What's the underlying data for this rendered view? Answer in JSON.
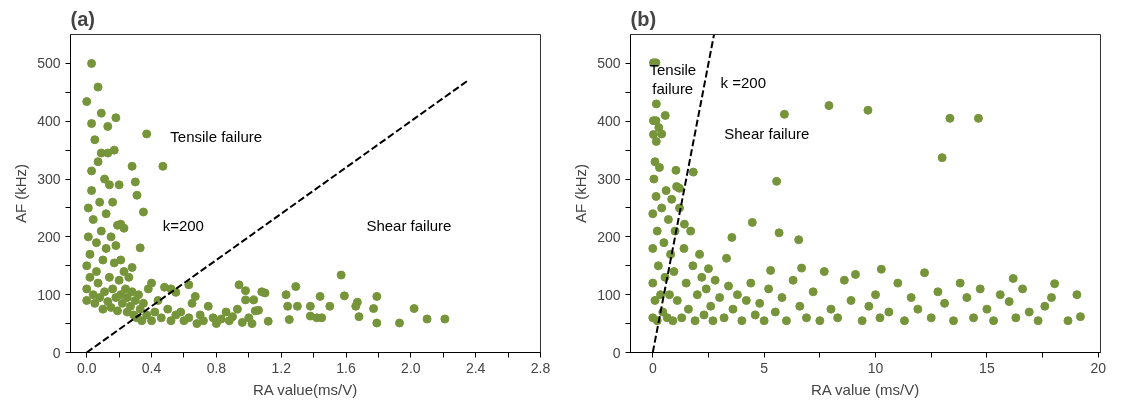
{
  "chart_data": [
    {
      "type": "scatter",
      "title": "(a)",
      "xlabel": "RA value(ms/V)",
      "ylabel": "AF (kHz)",
      "marker": "circle",
      "grid": false,
      "xlim": [
        -0.1,
        2.8
      ],
      "ylim": [
        0,
        550
      ],
      "xticks": [
        {
          "value": 0,
          "label": "0.0"
        },
        {
          "value": 0.2,
          "label": null
        },
        {
          "value": 0.4,
          "label": "0.4"
        },
        {
          "value": 0.6,
          "label": null
        },
        {
          "value": 0.8,
          "label": "0.8"
        },
        {
          "value": 1.0,
          "label": null
        },
        {
          "value": 1.2,
          "label": "1.2"
        },
        {
          "value": 1.4,
          "label": null
        },
        {
          "value": 1.6,
          "label": "1.6"
        },
        {
          "value": 1.8,
          "label": null
        },
        {
          "value": 2.0,
          "label": "2.0"
        },
        {
          "value": 2.2,
          "label": null
        },
        {
          "value": 2.4,
          "label": "2.4"
        },
        {
          "value": 2.6,
          "label": null
        },
        {
          "value": 2.8,
          "label": "2.8"
        }
      ],
      "yticks": [
        0,
        {
          "value": 50,
          "label": null
        },
        100,
        {
          "value": 150,
          "label": null
        },
        200,
        {
          "value": 250,
          "label": null
        },
        300,
        {
          "value": 350,
          "label": null
        },
        400,
        {
          "value": 450,
          "label": null
        },
        500
      ],
      "annotations": [
        "Tensile failure",
        "k=200",
        "Shear failure"
      ],
      "series": [
        {
          "color": "#76953b",
          "x": [
            0.0,
            0.0,
            0.0,
            0.01,
            0.01,
            0.02,
            0.02,
            0.03,
            0.03,
            0.04,
            0.04,
            0.05,
            0.05,
            0.06,
            0.06,
            0.07,
            0.07,
            0.08,
            0.08,
            0.09,
            0.09,
            0.1,
            0.1,
            0.11,
            0.11,
            0.12,
            0.12,
            0.13,
            0.13,
            0.14,
            0.14,
            0.15,
            0.15,
            0.16,
            0.16,
            0.17,
            0.17,
            0.18,
            0.18,
            0.19,
            0.19,
            0.2,
            0.2,
            0.21,
            0.21,
            0.22,
            0.23,
            0.23,
            0.24,
            0.25,
            0.25,
            0.26,
            0.27,
            0.28,
            0.28,
            0.29,
            0.3,
            0.31,
            0.32,
            0.33,
            0.34,
            0.35,
            0.37,
            0.38,
            0.4,
            0.42,
            0.44,
            0.46,
            0.5,
            0.52,
            0.55,
            0.58,
            0.6,
            0.63,
            0.65,
            0.68,
            0.7,
            0.72,
            0.75,
            0.78,
            0.8,
            0.83,
            0.86,
            0.88,
            0.9,
            0.93,
            0.96,
            1.0,
            1.02,
            1.04,
            0.03,
            0.07,
            0.0,
            0.09,
            0.18,
            0.03,
            0.13,
            0.37,
            0.47,
            0.28,
            0.3,
            0.31,
            0.35,
            0.33,
            0.21,
            0.94,
            0.98,
            0.98,
            1.03,
            1.08,
            1.1,
            1.06,
            1.12,
            0.63,
            0.67,
            0.4,
            0.48,
            0.52,
            0.55,
            1.23,
            1.24,
            1.25,
            1.29,
            1.3,
            1.38,
            1.38,
            1.42,
            1.45,
            1.44,
            1.5,
            1.57,
            1.59,
            1.67,
            1.66,
            1.68,
            1.77,
            1.79,
            1.79,
            1.93,
            2.02,
            2.1,
            2.21
          ],
          "values": [
            90,
            110,
            150,
            200,
            250,
            130,
            170,
            280,
            314,
            230,
            100,
            85,
            368,
            190,
            140,
            330,
            120,
            95,
            260,
            210,
            345,
            75,
            160,
            300,
            105,
            240,
            180,
            88,
            345,
            130,
            290,
            200,
            78,
            110,
            260,
            155,
            350,
            95,
            185,
            72,
            220,
            125,
            290,
            100,
            160,
            85,
            140,
            215,
            110,
            70,
            95,
            130,
            80,
            105,
            147,
            65,
            90,
            60,
            100,
            75,
            55,
            85,
            65,
            110,
            55,
            70,
            90,
            60,
            75,
            55,
            65,
            70,
            55,
            60,
            85,
            50,
            65,
            55,
            80,
            60,
            50,
            58,
            70,
            55,
            62,
            75,
            52,
            60,
            50,
            72,
            500,
            459,
            434,
            414,
            406,
            396,
            391,
            378,
            322,
            322,
            295,
            272,
            243,
            181,
            222,
            117,
            107,
            91,
            91,
            105,
            103,
            73,
            54,
            117,
            97,
            120,
            113,
            110,
            104,
            100,
            80,
            57,
            114,
            80,
            80,
            63,
            60,
            60,
            97,
            80,
            134,
            98,
            87,
            80,
            62,
            76,
            97,
            51,
            51,
            76,
            58,
            58
          ]
        },
        {
          "type": "line",
          "color": "#000000",
          "line_style": "dashed",
          "marker": "none",
          "x": [
            0,
            2.35
          ],
          "values": [
            0,
            470
          ]
        }
      ]
    },
    {
      "type": "scatter",
      "title": "(b)",
      "xlabel": "RA value (ms/V)",
      "ylabel": "AF (kHz)",
      "marker": "circle",
      "grid": false,
      "xlim": [
        -1,
        20.1
      ],
      "ylim": [
        0,
        550
      ],
      "xticks": [
        0,
        {
          "value": 2.5,
          "label": null
        },
        5,
        {
          "value": 7.5,
          "label": null
        },
        10,
        {
          "value": 12.5,
          "label": null
        },
        15,
        {
          "value": 17.5,
          "label": null
        },
        20
      ],
      "yticks": [
        0,
        {
          "value": 50,
          "label": null
        },
        100,
        {
          "value": 150,
          "label": null
        },
        200,
        {
          "value": 250,
          "label": null
        },
        300,
        {
          "value": 350,
          "label": null
        },
        400,
        {
          "value": 450,
          "label": null
        },
        500
      ],
      "annotations": [
        "Tensile\nfailure",
        "k =200",
        "Shear failure"
      ],
      "series": [
        {
          "color": "#76953b",
          "x": [
            0,
            0,
            0,
            0,
            0.05,
            0.1,
            0.1,
            0.15,
            0.2,
            0.2,
            0.25,
            0.3,
            0.35,
            0.4,
            0.45,
            0.5,
            0.55,
            0.6,
            0.65,
            0.7,
            0.75,
            0.8,
            0.85,
            0.9,
            0.95,
            1.0,
            1.1,
            1.2,
            1.3,
            1.4,
            1.5,
            1.6,
            1.7,
            1.8,
            1.9,
            2.0,
            2.1,
            2.2,
            2.3,
            2.4,
            2.5,
            2.6,
            2.7,
            2.8,
            3.0,
            3.2,
            3.4,
            3.6,
            3.8,
            4.0,
            4.2,
            4.4,
            4.6,
            4.8,
            5.0,
            5.2,
            5.5,
            5.8,
            6.0,
            6.3,
            6.6,
            6.9,
            7.2,
            7.5,
            7.7,
            8.0,
            8.3,
            8.6,
            8.9,
            9.1,
            9.4,
            9.7,
            10.0,
            10.2,
            10.6,
            11.0,
            11.3,
            11.6,
            11.9,
            12.2,
            12.5,
            12.8,
            13.1,
            13.5,
            13.8,
            14.1,
            14.4,
            14.7,
            15.0,
            15.3,
            15.6,
            16.0,
            16.3,
            16.6,
            16.9,
            17.3,
            17.6,
            17.9,
            0.03,
            0.14,
            0.16,
            0.56,
            0.03,
            0.14,
            0.27,
            0.4,
            0.03,
            0.16,
            1.04,
            1.82,
            1.07,
            1.2,
            5.91,
            7.91,
            9.66,
            13.34,
            14.62,
            12.99,
            5.56,
            4.47,
            5.67,
            3.55,
            6.55,
            1.42,
            3.31,
            5.29,
            6.68,
            10.26,
            16.18,
            18.04,
            19.04,
            19.2,
            18.64
          ],
          "values": [
            60,
            120,
            180,
            240,
            300,
            330,
            90,
            270,
            210,
            55,
            150,
            320,
            100,
            250,
            70,
            190,
            130,
            280,
            60,
            230,
            100,
            170,
            265,
            55,
            140,
            210,
            90,
            250,
            60,
            180,
            120,
            75,
            210,
            150,
            55,
            100,
            170,
            130,
            65,
            110,
            145,
            80,
            55,
            125,
            95,
            60,
            115,
            75,
            100,
            55,
            90,
            120,
            65,
            85,
            55,
            110,
            70,
            95,
            55,
            125,
            80,
            60,
            105,
            55,
            140,
            75,
            60,
            125,
            90,
            135,
            55,
            80,
            100,
            60,
            70,
            120,
            55,
            95,
            75,
            138,
            60,
            105,
            85,
            55,
            120,
            95,
            60,
            110,
            75,
            55,
            100,
            88,
            60,
            110,
            70,
            55,
            80,
            95,
            501,
            501,
            430,
            410,
            401,
            401,
            389,
            378,
            377,
            365,
            315,
            312,
            287,
            284,
            412,
            427,
            419,
            405,
            405,
            337,
            296,
            225,
            207,
            199,
            195,
            222,
            163,
            142,
            146,
            144,
            128,
            119,
            100,
            62,
            55
          ]
        },
        {
          "type": "line",
          "color": "#000000",
          "line_style": "dashed",
          "marker": "none",
          "x": [
            0,
            2.75
          ],
          "values": [
            0,
            550
          ]
        }
      ]
    }
  ]
}
